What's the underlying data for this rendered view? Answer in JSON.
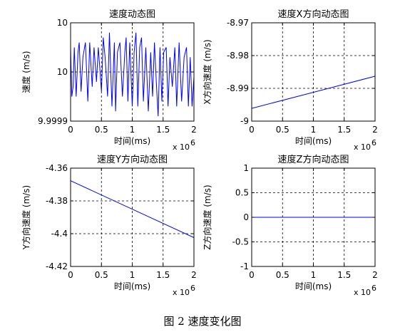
{
  "figure": {
    "caption": "图 2 速度变化图"
  },
  "chart_data": [
    {
      "type": "line",
      "title": "速度动态图",
      "xlabel": "时间(ms)",
      "ylabel": "速度 (m/s)",
      "x_multiplier_label": "x 10",
      "x_multiplier_exp": "6",
      "xlim": [
        0,
        2
      ],
      "ylim": [
        9.9999,
        10.0001
      ],
      "xticks": [
        0,
        0.5,
        1,
        1.5,
        2
      ],
      "xtick_labels": [
        "0",
        "0.5",
        "1",
        "1.5",
        "2"
      ],
      "yticks": [
        9.9999,
        10.0,
        10.0001
      ],
      "ytick_labels": [
        "9.9999",
        "10",
        "10"
      ],
      "grid": true,
      "series_color": "#0000ff",
      "x": [
        0,
        0.02,
        0.04,
        0.06,
        0.09,
        0.12,
        0.14,
        0.17,
        0.2,
        0.24,
        0.28,
        0.31,
        0.35,
        0.38,
        0.42,
        0.45,
        0.5,
        0.53,
        0.56,
        0.6,
        0.63,
        0.67,
        0.71,
        0.73,
        0.76,
        0.8,
        0.84,
        0.88,
        0.9,
        0.93,
        0.96,
        1.0,
        1.03,
        1.06,
        1.09,
        1.12,
        1.15,
        1.18,
        1.22,
        1.26,
        1.3,
        1.33,
        1.36,
        1.39,
        1.42,
        1.45,
        1.48,
        1.51,
        1.55,
        1.58,
        1.61,
        1.65,
        1.69,
        1.72,
        1.76,
        1.8,
        1.84,
        1.88,
        1.91,
        1.94,
        1.97,
        2.0
      ],
      "y": [
        10.00005,
        9.99995,
        9.99997,
        10.00005,
        9.99995,
        10.00004,
        10.00006,
        9.99996,
        10.00003,
        10.00006,
        9.99994,
        10.00006,
        9.99997,
        10.00005,
        9.99998,
        10.00005,
        9.99996,
        10.00007,
        10.00003,
        9.99995,
        10.00008,
        9.99993,
        10.00006,
        9.99992,
        10.00004,
        10.00006,
        9.99995,
        10.00004,
        10.00007,
        9.99994,
        10.00006,
        9.99993,
        10.00004,
        10.00008,
        9.99993,
        10.00005,
        10.00007,
        9.99994,
        10.00005,
        9.99992,
        10.00004,
        9.99995,
        10.00006,
        9.99998,
        9.99991,
        10.00005,
        9.99994,
        10.00004,
        10.00005,
        9.99993,
        10.00003,
        9.99997,
        10.00005,
        9.99993,
        10.00006,
        9.99994,
        10.00003,
        10.00005,
        9.99993,
        10.00003,
        9.99993,
        9.99999
      ]
    },
    {
      "type": "line",
      "title": "速度X方向动态图",
      "xlabel": "时间(ms)",
      "ylabel": "X方向速度 (m/s)",
      "x_multiplier_label": "x 10",
      "x_multiplier_exp": "6",
      "xlim": [
        0,
        2
      ],
      "ylim": [
        -9.0,
        -8.97
      ],
      "xticks": [
        0,
        0.5,
        1,
        1.5,
        2
      ],
      "xtick_labels": [
        "0",
        "0.5",
        "1",
        "1.5",
        "2"
      ],
      "yticks": [
        -9.0,
        -8.99,
        -8.98,
        -8.97
      ],
      "ytick_labels": [
        "-9",
        "-8.99",
        "-8.98",
        "-8.97"
      ],
      "grid": true,
      "series_color": "#0000ff",
      "x": [
        0,
        2
      ],
      "y": [
        -8.9961,
        -8.9863
      ]
    },
    {
      "type": "line",
      "title": "速度Y方向动态图",
      "xlabel": "时间(ms)",
      "ylabel": "Y方向速度 (m/s)",
      "x_multiplier_label": "x 10",
      "x_multiplier_exp": "6",
      "xlim": [
        0,
        2
      ],
      "ylim": [
        -4.42,
        -4.36
      ],
      "xticks": [
        0,
        0.5,
        1,
        1.5,
        2
      ],
      "xtick_labels": [
        "0",
        "0.5",
        "1",
        "1.5",
        "2"
      ],
      "yticks": [
        -4.42,
        -4.4,
        -4.38,
        -4.36
      ],
      "ytick_labels": [
        "-4.42",
        "-4.4",
        "-4.38",
        "-4.36"
      ],
      "grid": true,
      "series_color": "#0000ff",
      "x": [
        0,
        2
      ],
      "y": [
        -4.3677,
        -4.4024
      ]
    },
    {
      "type": "line",
      "title": "速度Z方向动态图",
      "xlabel": "时间(ms)",
      "ylabel": "Z方向速度 (m/s)",
      "x_multiplier_label": "x 10",
      "x_multiplier_exp": "6",
      "xlim": [
        0,
        2
      ],
      "ylim": [
        -1,
        1
      ],
      "xticks": [
        0,
        0.5,
        1,
        1.5,
        2
      ],
      "xtick_labels": [
        "0",
        "0.5",
        "1",
        "1.5",
        "2"
      ],
      "yticks": [
        -1,
        -0.5,
        0,
        0.5,
        1
      ],
      "ytick_labels": [
        "-1",
        "-0.5",
        "0",
        "0.5",
        "1"
      ],
      "grid": true,
      "series_color": "#0000ff",
      "x": [
        0,
        2
      ],
      "y": [
        0,
        0
      ]
    }
  ]
}
